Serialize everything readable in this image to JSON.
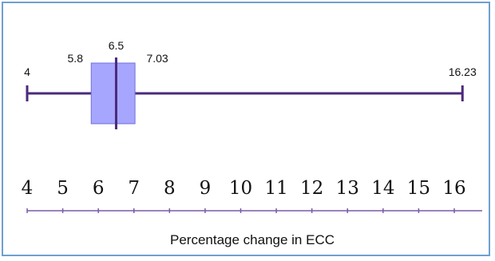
{
  "chart_data": {
    "type": "box",
    "xlabel": "Percentage change in ECC",
    "x_ticks": [
      "4",
      "5",
      "6",
      "7",
      "8",
      "9",
      "10",
      "11",
      "12",
      "13",
      "14",
      "15",
      "16"
    ],
    "xlim": [
      4,
      16.8
    ],
    "box": {
      "min": 4,
      "q1": 5.8,
      "median": 6.5,
      "q3": 7.03,
      "max": 16.23
    },
    "annotations": {
      "min": "4",
      "q1": "5.8",
      "median": "6.5",
      "q3": "7.03",
      "max": "16.23"
    },
    "colors": {
      "box_fill": "#a6a6ff",
      "line": "#4b2a7b",
      "frame": "#6f9fd0",
      "axis": "#7a5aa8"
    }
  }
}
